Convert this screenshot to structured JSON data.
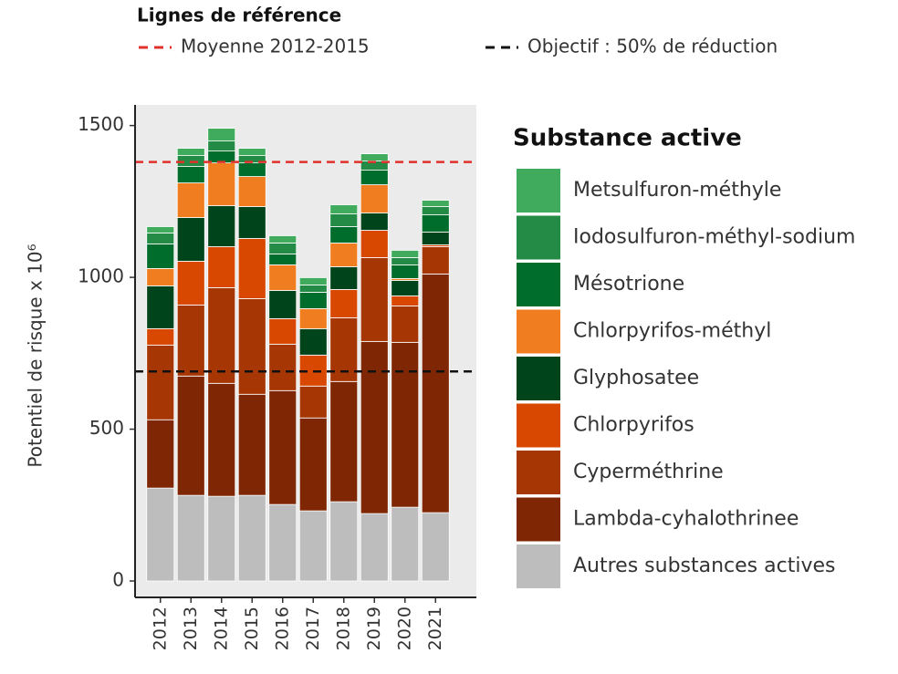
{
  "chart_data": {
    "type": "stacked_bar",
    "y_label": "Potentiel de risque x 10⁶",
    "legend_title": "Substance active",
    "reference_title": "Lignes de référence",
    "reference_lines": [
      {
        "name": "Moyenne 2012-2015",
        "value": 1380,
        "color": "#e0312b"
      },
      {
        "name": "Objectif : 50% de réduction",
        "value": 690,
        "color": "#111111"
      }
    ],
    "categories": [
      "2012",
      "2013",
      "2014",
      "2015",
      "2016",
      "2017",
      "2018",
      "2019",
      "2020",
      "2021"
    ],
    "series": [
      {
        "name": "Autres substances actives",
        "color": "#bdbdbd",
        "values": [
          306,
          282,
          279,
          282,
          252,
          231,
          261,
          222,
          243,
          225
        ]
      },
      {
        "name": "Lambda-cyhalothrinee",
        "color": "#7f2704",
        "values": [
          225,
          393,
          372,
          333,
          375,
          306,
          396,
          567,
          543,
          786
        ]
      },
      {
        "name": "Cyperméthrine",
        "color": "#a63603",
        "values": [
          246,
          234,
          315,
          315,
          153,
          105,
          210,
          276,
          120,
          90
        ]
      },
      {
        "name": "Chlorpyrifos",
        "color": "#d94801",
        "values": [
          54,
          144,
          135,
          198,
          84,
          102,
          93,
          90,
          33,
          6
        ]
      },
      {
        "name": "Glyphosatee",
        "color": "#00441b",
        "values": [
          141,
          144,
          135,
          105,
          93,
          87,
          75,
          57,
          51,
          42
        ]
      },
      {
        "name": "Chlorpyrifos-méthyl",
        "color": "#f07d1f",
        "values": [
          57,
          114,
          141,
          99,
          84,
          66,
          78,
          93,
          6,
          0
        ]
      },
      {
        "name": "Mésotrione",
        "color": "#006d2c",
        "values": [
          81,
          54,
          39,
          45,
          36,
          54,
          54,
          48,
          45,
          57
        ]
      },
      {
        "name": "Iodosulfuron-méthyl-sodium",
        "color": "#238b45",
        "values": [
          36,
          36,
          33,
          24,
          36,
          24,
          42,
          30,
          24,
          27
        ]
      },
      {
        "name": "Metsulfuron-méthyle",
        "color": "#41ab5d",
        "values": [
          21,
          24,
          42,
          24,
          24,
          24,
          30,
          24,
          24,
          21
        ]
      }
    ],
    "ylim": [
      -54,
      1568
    ],
    "yticks": [
      0,
      500,
      1000,
      1500
    ]
  }
}
